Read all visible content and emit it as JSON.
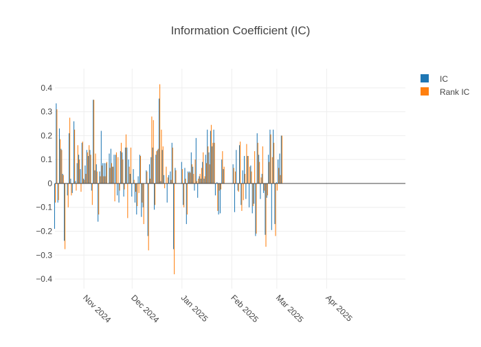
{
  "chart_data": {
    "type": "bar",
    "title": "Information Coefficient (IC)",
    "xlabel": "",
    "ylabel": "",
    "ylim": [
      -0.44,
      0.48
    ],
    "yticks": [
      -0.4,
      -0.3,
      -0.2,
      -0.1,
      0,
      0.1,
      0.2,
      0.3,
      0.4
    ],
    "ytick_labels": [
      "−0.4",
      "−0.3",
      "−0.2",
      "−0.1",
      "0",
      "0.1",
      "0.2",
      "0.3",
      "0.4"
    ],
    "xrange": [
      "2024-10-14",
      "2025-05-20"
    ],
    "xticks": [
      {
        "date": "2024-11-01",
        "label": "Nov 2024"
      },
      {
        "date": "2024-12-01",
        "label": "Dec 2024"
      },
      {
        "date": "2025-01-01",
        "label": "Jan 2025"
      },
      {
        "date": "2025-02-01",
        "label": "Feb 2025"
      },
      {
        "date": "2025-03-01",
        "label": "Mar 2025"
      },
      {
        "date": "2025-04-01",
        "label": "Apr 2025"
      }
    ],
    "grid": true,
    "legend_position": "top-right",
    "series": [
      {
        "name": "IC",
        "color": "#1f77b4"
      },
      {
        "name": "Rank IC",
        "color": "#ff7f0e"
      }
    ],
    "points": [
      {
        "date": "2024-10-14",
        "ic": -0.19,
        "rank_ic": -0.08
      },
      {
        "date": "2024-10-15",
        "ic": 0.335,
        "rank_ic": 0.31
      },
      {
        "date": "2024-10-16",
        "ic": -0.08,
        "rank_ic": -0.07
      },
      {
        "date": "2024-10-17",
        "ic": 0.23,
        "rank_ic": 0.185
      },
      {
        "date": "2024-10-18",
        "ic": 0.145,
        "rank_ic": 0.14
      },
      {
        "date": "2024-10-19",
        "ic": 0.04,
        "rank_ic": 0.035
      },
      {
        "date": "2024-10-20",
        "ic": -0.24,
        "rank_ic": -0.275
      },
      {
        "date": "2024-10-22",
        "ic": -0.05,
        "rank_ic": -0.1
      },
      {
        "date": "2024-10-23",
        "ic": 0.21,
        "rank_ic": 0.275
      },
      {
        "date": "2024-10-24",
        "ic": 0.02,
        "rank_ic": -0.05
      },
      {
        "date": "2024-10-25",
        "ic": -0.04,
        "rank_ic": 0.0
      },
      {
        "date": "2024-10-26",
        "ic": 0.26,
        "rank_ic": 0.225
      },
      {
        "date": "2024-10-27",
        "ic": 0.01,
        "rank_ic": -0.03
      },
      {
        "date": "2024-10-28",
        "ic": 0.085,
        "rank_ic": 0.16
      },
      {
        "date": "2024-10-29",
        "ic": 0.12,
        "rank_ic": 0.1
      },
      {
        "date": "2024-10-30",
        "ic": 0.06,
        "rank_ic": -0.035
      },
      {
        "date": "2024-10-31",
        "ic": 0.17,
        "rank_ic": 0.175
      },
      {
        "date": "2024-11-01",
        "ic": 0.02,
        "rank_ic": 0.015
      },
      {
        "date": "2024-11-02",
        "ic": 0.075,
        "rank_ic": 0.04
      },
      {
        "date": "2024-11-03",
        "ic": 0.14,
        "rank_ic": 0.13
      },
      {
        "date": "2024-11-04",
        "ic": 0.115,
        "rank_ic": 0.16
      },
      {
        "date": "2024-11-05",
        "ic": 0.14,
        "rank_ic": 0.12
      },
      {
        "date": "2024-11-06",
        "ic": -0.03,
        "rank_ic": -0.09
      },
      {
        "date": "2024-11-07",
        "ic": 0.35,
        "rank_ic": 0.35
      },
      {
        "date": "2024-11-08",
        "ic": 0.055,
        "rank_ic": 0.125
      },
      {
        "date": "2024-11-09",
        "ic": 0.08,
        "rank_ic": 0.05
      },
      {
        "date": "2024-11-10",
        "ic": -0.16,
        "rank_ic": -0.13
      },
      {
        "date": "2024-11-11",
        "ic": 0.05,
        "rank_ic": 0.03
      },
      {
        "date": "2024-11-12",
        "ic": 0.22,
        "rank_ic": 0.075
      },
      {
        "date": "2024-11-13",
        "ic": 0.085,
        "rank_ic": 0.03
      },
      {
        "date": "2024-11-14",
        "ic": 0.085,
        "rank_ic": 0.03
      },
      {
        "date": "2024-11-15",
        "ic": 0.085,
        "rank_ic": 0.09
      },
      {
        "date": "2024-11-17",
        "ic": 0.125,
        "rank_ic": 0.065
      },
      {
        "date": "2024-11-18",
        "ic": 0.145,
        "rank_ic": 0.085
      },
      {
        "date": "2024-11-19",
        "ic": 0.07,
        "rank_ic": 0.07
      },
      {
        "date": "2024-11-20",
        "ic": 0.12,
        "rank_ic": -0.075
      },
      {
        "date": "2024-11-21",
        "ic": 0.12,
        "rank_ic": 0.13
      },
      {
        "date": "2024-11-22",
        "ic": -0.05,
        "rank_ic": 0.11
      },
      {
        "date": "2024-11-23",
        "ic": -0.08,
        "rank_ic": -0.03
      },
      {
        "date": "2024-11-24",
        "ic": 0.135,
        "rank_ic": 0.17
      },
      {
        "date": "2024-11-25",
        "ic": 0.13,
        "rank_ic": 0.1
      },
      {
        "date": "2024-11-26",
        "ic": -0.055,
        "rank_ic": -0.025
      },
      {
        "date": "2024-11-27",
        "ic": 0.15,
        "rank_ic": 0.205
      },
      {
        "date": "2024-11-28",
        "ic": 0.15,
        "rank_ic": -0.145
      },
      {
        "date": "2024-11-29",
        "ic": 0.1,
        "rank_ic": 0.07
      },
      {
        "date": "2024-11-30",
        "ic": 0.04,
        "rank_ic": 0.15
      },
      {
        "date": "2024-12-01",
        "ic": -0.055,
        "rank_ic": 0.0
      },
      {
        "date": "2024-12-02",
        "ic": 0.06,
        "rank_ic": 0.015
      },
      {
        "date": "2024-12-03",
        "ic": -0.08,
        "rank_ic": -0.035
      },
      {
        "date": "2024-12-04",
        "ic": -0.13,
        "rank_ic": -0.095
      },
      {
        "date": "2024-12-05",
        "ic": 0.03,
        "rank_ic": -0.04
      },
      {
        "date": "2024-12-06",
        "ic": 0.12,
        "rank_ic": 0.115
      },
      {
        "date": "2024-12-07",
        "ic": -0.14,
        "rank_ic": -0.08
      },
      {
        "date": "2024-12-08",
        "ic": -0.1,
        "rank_ic": -0.17
      },
      {
        "date": "2024-12-10",
        "ic": 0.055,
        "rank_ic": 0.05
      },
      {
        "date": "2024-12-11",
        "ic": -0.22,
        "rank_ic": -0.28
      },
      {
        "date": "2024-12-12",
        "ic": 0.08,
        "rank_ic": 0.02
      },
      {
        "date": "2024-12-13",
        "ic": 0.11,
        "rank_ic": 0.28
      },
      {
        "date": "2024-12-14",
        "ic": 0.15,
        "rank_ic": 0.265
      },
      {
        "date": "2024-12-15",
        "ic": -0.11,
        "rank_ic": -0.09
      },
      {
        "date": "2024-12-16",
        "ic": 0.12,
        "rank_ic": 0.135
      },
      {
        "date": "2024-12-17",
        "ic": 0.14,
        "rank_ic": 0.145
      },
      {
        "date": "2024-12-18",
        "ic": 0.355,
        "rank_ic": 0.415
      },
      {
        "date": "2024-12-19",
        "ic": 0.01,
        "rank_ic": 0.225
      },
      {
        "date": "2024-12-20",
        "ic": 0.14,
        "rank_ic": 0.155
      },
      {
        "date": "2024-12-21",
        "ic": 0.035,
        "rank_ic": -0.02
      },
      {
        "date": "2024-12-22",
        "ic": 0.0,
        "rank_ic": 0.07
      },
      {
        "date": "2024-12-23",
        "ic": -0.08,
        "rank_ic": 0.025
      },
      {
        "date": "2024-12-24",
        "ic": 0.035,
        "rank_ic": 0.0
      },
      {
        "date": "2024-12-25",
        "ic": 0.05,
        "rank_ic": 0.015
      },
      {
        "date": "2024-12-26",
        "ic": 0.17,
        "rank_ic": 0.15
      },
      {
        "date": "2024-12-27",
        "ic": -0.275,
        "rank_ic": -0.38
      },
      {
        "date": "2024-12-28",
        "ic": 0.065,
        "rank_ic": 0.055
      },
      {
        "date": "2025-01-01",
        "ic": 0.09,
        "rank_ic": 0.06
      },
      {
        "date": "2025-01-02",
        "ic": -0.09,
        "rank_ic": -0.1
      },
      {
        "date": "2025-01-03",
        "ic": 0.065,
        "rank_ic": 0.02
      },
      {
        "date": "2025-01-04",
        "ic": -0.17,
        "rank_ic": -0.13
      },
      {
        "date": "2025-01-05",
        "ic": 0.05,
        "rank_ic": 0.045
      },
      {
        "date": "2025-01-06",
        "ic": 0.05,
        "rank_ic": 0.045
      },
      {
        "date": "2025-01-07",
        "ic": 0.13,
        "rank_ic": 0.08
      },
      {
        "date": "2025-01-08",
        "ic": 0.07,
        "rank_ic": 0.04
      },
      {
        "date": "2025-01-09",
        "ic": -0.03,
        "rank_ic": 0.1
      },
      {
        "date": "2025-01-10",
        "ic": 0.19,
        "rank_ic": 0.01
      },
      {
        "date": "2025-01-11",
        "ic": -0.06,
        "rank_ic": 0.02
      },
      {
        "date": "2025-01-12",
        "ic": 0.03,
        "rank_ic": 0.04
      },
      {
        "date": "2025-01-13",
        "ic": 0.02,
        "rank_ic": 0.065
      },
      {
        "date": "2025-01-14",
        "ic": 0.09,
        "rank_ic": 0.13
      },
      {
        "date": "2025-01-15",
        "ic": 0.02,
        "rank_ic": 0.03
      },
      {
        "date": "2025-01-16",
        "ic": 0.12,
        "rank_ic": 0.085
      },
      {
        "date": "2025-01-17",
        "ic": 0.225,
        "rank_ic": 0.155
      },
      {
        "date": "2025-01-18",
        "ic": 0.13,
        "rank_ic": 0.08
      },
      {
        "date": "2025-01-19",
        "ic": 0.22,
        "rank_ic": 0.245
      },
      {
        "date": "2025-01-20",
        "ic": 0.155,
        "rank_ic": 0.17
      },
      {
        "date": "2025-01-21",
        "ic": 0.225,
        "rank_ic": 0.17
      },
      {
        "date": "2025-01-22",
        "ic": -0.05,
        "rank_ic": 0.0
      },
      {
        "date": "2025-01-23",
        "ic": 0.005,
        "rank_ic": -0.115
      },
      {
        "date": "2025-01-24",
        "ic": -0.13,
        "rank_ic": -0.03
      },
      {
        "date": "2025-01-25",
        "ic": -0.125,
        "rank_ic": -0.025
      },
      {
        "date": "2025-01-26",
        "ic": 0.1,
        "rank_ic": 0.135
      },
      {
        "date": "2025-01-27",
        "ic": 0.06,
        "rank_ic": 0.07
      },
      {
        "date": "2025-02-02",
        "ic": 0.08,
        "rank_ic": 0.065
      },
      {
        "date": "2025-02-03",
        "ic": -0.12,
        "rank_ic": 0.05
      },
      {
        "date": "2025-02-04",
        "ic": 0.14,
        "rank_ic": 0.0
      },
      {
        "date": "2025-02-05",
        "ic": -0.03,
        "rank_ic": -0.035
      },
      {
        "date": "2025-02-06",
        "ic": 0.16,
        "rank_ic": 0.175
      },
      {
        "date": "2025-02-07",
        "ic": -0.09,
        "rank_ic": -0.115
      },
      {
        "date": "2025-02-08",
        "ic": 0.055,
        "rank_ic": -0.07
      },
      {
        "date": "2025-02-09",
        "ic": 0.115,
        "rank_ic": 0.04
      },
      {
        "date": "2025-02-10",
        "ic": -0.065,
        "rank_ic": 0.165
      },
      {
        "date": "2025-02-11",
        "ic": 0.115,
        "rank_ic": 0.115
      },
      {
        "date": "2025-02-12",
        "ic": -0.1,
        "rank_ic": 0.07
      },
      {
        "date": "2025-02-13",
        "ic": 0.075,
        "rank_ic": 0.05
      },
      {
        "date": "2025-02-14",
        "ic": -0.125,
        "rank_ic": -0.095
      },
      {
        "date": "2025-02-15",
        "ic": -0.085,
        "rank_ic": 0.135
      },
      {
        "date": "2025-02-16",
        "ic": -0.22,
        "rank_ic": -0.21
      },
      {
        "date": "2025-02-17",
        "ic": 0.21,
        "rank_ic": 0.17
      },
      {
        "date": "2025-02-18",
        "ic": 0.12,
        "rank_ic": 0.09
      },
      {
        "date": "2025-02-19",
        "ic": -0.065,
        "rank_ic": 0.025
      },
      {
        "date": "2025-02-20",
        "ic": 0.04,
        "rank_ic": 0.155
      },
      {
        "date": "2025-02-21",
        "ic": -0.04,
        "rank_ic": -0.03
      },
      {
        "date": "2025-02-22",
        "ic": -0.215,
        "rank_ic": -0.265
      },
      {
        "date": "2025-02-23",
        "ic": -0.06,
        "rank_ic": -0.05
      },
      {
        "date": "2025-02-24",
        "ic": 0.12,
        "rank_ic": 0.09
      },
      {
        "date": "2025-02-25",
        "ic": 0.225,
        "rank_ic": 0.205
      },
      {
        "date": "2025-02-26",
        "ic": -0.195,
        "rank_ic": 0.11
      },
      {
        "date": "2025-02-27",
        "ic": 0.225,
        "rank_ic": 0.17
      },
      {
        "date": "2025-02-28",
        "ic": -0.17,
        "rank_ic": -0.22
      },
      {
        "date": "2025-03-01",
        "ic": 0.005,
        "rank_ic": -0.03
      },
      {
        "date": "2025-03-02",
        "ic": 0.1,
        "rank_ic": 0.065
      },
      {
        "date": "2025-03-03",
        "ic": 0.125,
        "rank_ic": 0.035
      },
      {
        "date": "2025-03-04",
        "ic": 0.2,
        "rank_ic": 0.2
      }
    ]
  }
}
